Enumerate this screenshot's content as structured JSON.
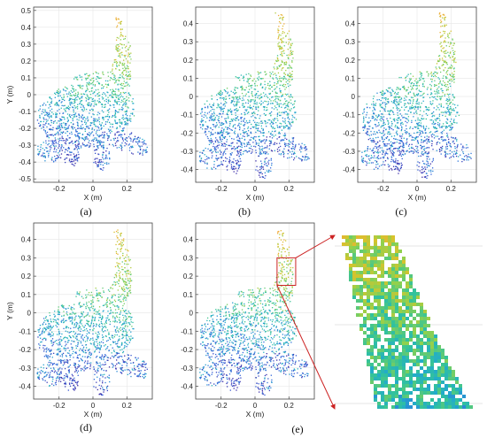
{
  "chart_data": [
    {
      "type": "scatter",
      "label": "(a)",
      "xlabel": "X (m)",
      "ylabel": "Y (m)",
      "xlim": [
        -0.35,
        0.35
      ],
      "ylim": [
        -0.52,
        0.52
      ],
      "xticks": [
        -0.2,
        0,
        0.2
      ],
      "xtick_labels": [
        "-0.2",
        "0",
        "0.2"
      ],
      "yticks": [
        -0.5,
        -0.4,
        -0.3,
        -0.2,
        -0.1,
        0,
        0.1,
        0.2,
        0.3,
        0.4,
        0.5
      ],
      "ytick_labels": [
        "-0.5",
        "-0.4",
        "-0.3",
        "-0.2",
        "-0.1",
        "0",
        "0.1",
        "0.2",
        "0.3",
        "0.4",
        "0.5"
      ],
      "grid": true
    },
    {
      "type": "scatter",
      "label": "(b)",
      "xlabel": "X (m)",
      "ylabel": "",
      "xlim": [
        -0.35,
        0.35
      ],
      "ylim": [
        -0.47,
        0.49
      ],
      "xticks": [
        -0.2,
        0,
        0.2
      ],
      "xtick_labels": [
        "-0.2",
        "0",
        "0.2"
      ],
      "yticks": [
        -0.4,
        -0.3,
        -0.2,
        -0.1,
        0,
        0.1,
        0.2,
        0.3,
        0.4
      ],
      "ytick_labels": [
        "-0.4",
        "-0.3",
        "-0.2",
        "-0.1",
        "0",
        "0.1",
        "0.2",
        "0.3",
        "0.4"
      ],
      "grid": true
    },
    {
      "type": "scatter",
      "label": "(c)",
      "xlabel": "X (m)",
      "ylabel": "",
      "xlim": [
        -0.35,
        0.35
      ],
      "ylim": [
        -0.47,
        0.49
      ],
      "xticks": [
        -0.2,
        0,
        0.2
      ],
      "xtick_labels": [
        "-0.2",
        "0",
        "0.2"
      ],
      "yticks": [
        -0.4,
        -0.3,
        -0.2,
        -0.1,
        0,
        0.1,
        0.2,
        0.3,
        0.4
      ],
      "ytick_labels": [
        "-0.4",
        "-0.3",
        "-0.2",
        "-0.1",
        "0",
        "0.1",
        "0.2",
        "0.3",
        "0.4"
      ],
      "grid": true
    },
    {
      "type": "scatter",
      "label": "(d)",
      "xlabel": "X (m)",
      "ylabel": "Y (m)",
      "xlim": [
        -0.35,
        0.35
      ],
      "ylim": [
        -0.47,
        0.49
      ],
      "xticks": [
        -0.2,
        0,
        0.2
      ],
      "xtick_labels": [
        "-0.2",
        "0",
        "0.2"
      ],
      "yticks": [
        -0.4,
        -0.3,
        -0.2,
        -0.1,
        0,
        0.1,
        0.2,
        0.3,
        0.4
      ],
      "ytick_labels": [
        "-0.4",
        "-0.3",
        "-0.2",
        "-0.1",
        "0",
        "0.1",
        "0.2",
        "0.3",
        "0.4"
      ],
      "grid": true
    },
    {
      "type": "scatter",
      "label": "(e)",
      "xlabel": "X (m)",
      "ylabel": "",
      "xlim": [
        -0.35,
        0.35
      ],
      "ylim": [
        -0.47,
        0.49
      ],
      "xticks": [
        -0.2,
        0,
        0.2
      ],
      "xtick_labels": [
        "-0.2",
        "0",
        "0.2"
      ],
      "yticks": [
        -0.4,
        -0.3,
        -0.2,
        -0.1,
        0,
        0.1,
        0.2,
        0.3,
        0.4
      ],
      "ytick_labels": [
        "-0.4",
        "-0.3",
        "-0.2",
        "-0.1",
        "0",
        "0.1",
        "0.2",
        "0.3",
        "0.4"
      ],
      "grid": true,
      "zoom_region": {
        "x": [
          0.13,
          0.24
        ],
        "y": [
          0.15,
          0.3
        ]
      }
    }
  ],
  "colors": {
    "colormap": [
      "#3b2ba8",
      "#3366dd",
      "#22aacc",
      "#33c39a",
      "#8fd14f",
      "#d6c32c",
      "#f2a93a"
    ],
    "zoom_box": "#cc2222",
    "grid": "#e6e6e6",
    "axis": "#444444"
  }
}
